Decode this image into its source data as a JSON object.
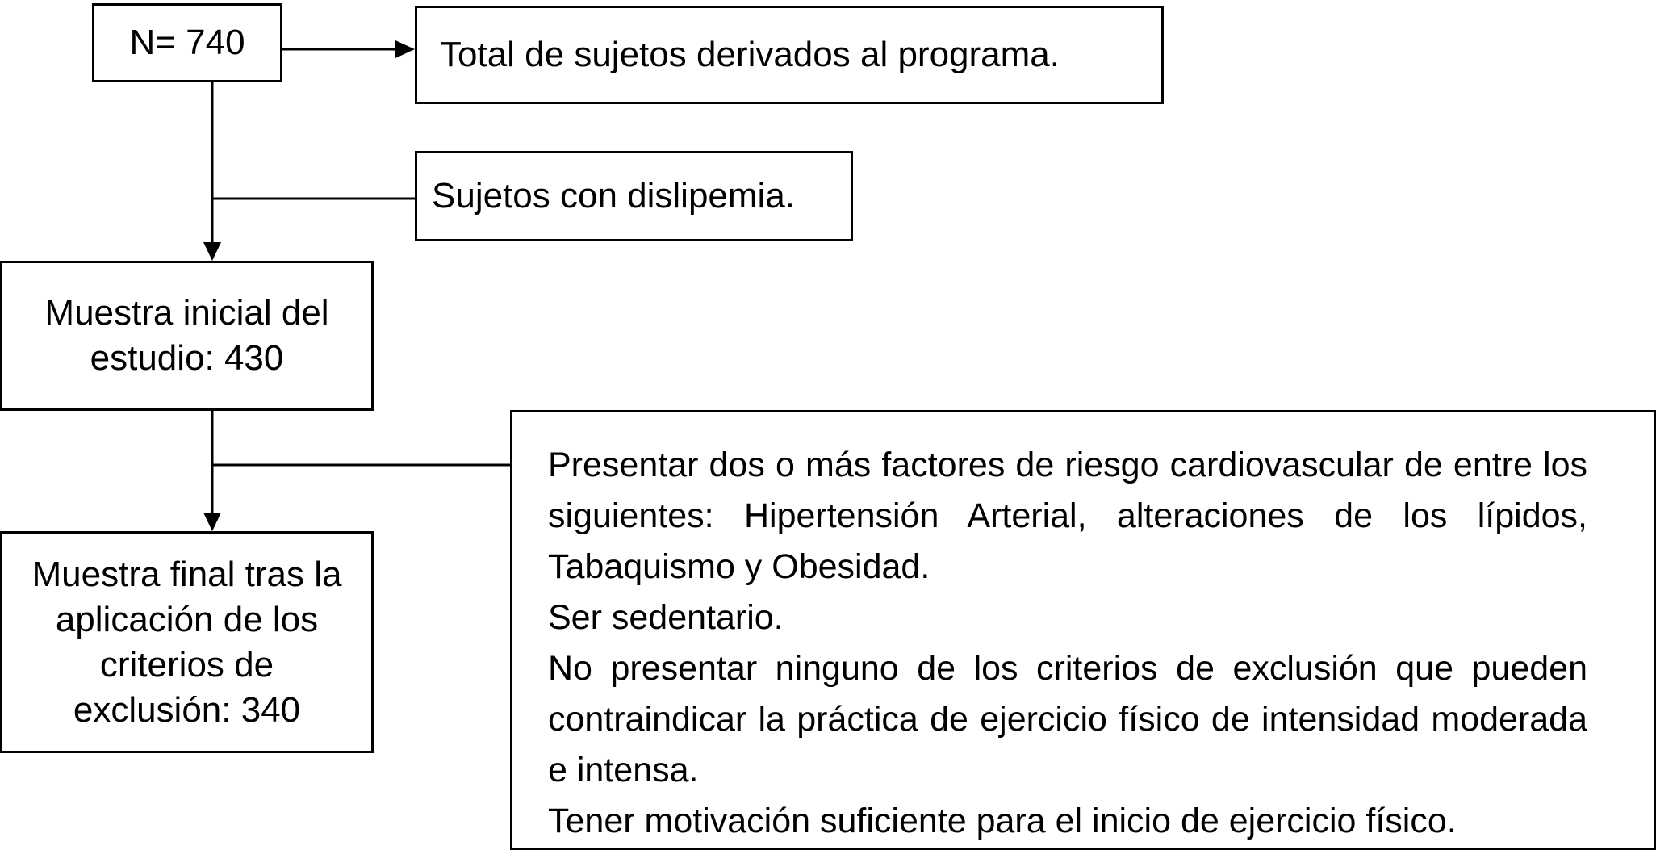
{
  "nodes": {
    "total": "N= 740",
    "total_desc": "Total de sujetos derivados al programa.",
    "filter1": "Sujetos con dislipemia.",
    "initial_sample": "Muestra inicial del estudio: 430",
    "final_sample": "Muestra final tras la aplicación de los criterios de exclusión: 340"
  },
  "criteria": [
    "Presentar dos o más factores de riesgo cardiovascular de entre los siguientes: Hipertensión Arterial, alteraciones de los lípidos, Tabaquismo y Obesidad.",
    "Ser sedentario.",
    "No presentar ninguno de los criterios de exclusión que pueden contraindicar la práctica de ejercicio físico de intensidad moderada e intensa.",
    "Tener motivación suficiente para el inicio de ejercicio físico."
  ]
}
